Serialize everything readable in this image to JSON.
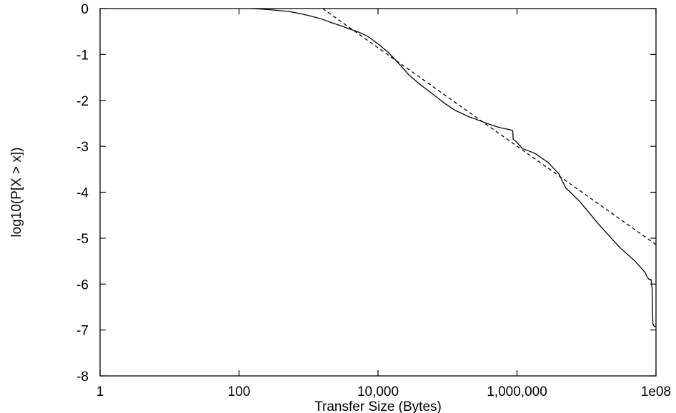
{
  "chart_data": {
    "type": "line",
    "title": "",
    "xlabel": "Transfer Size (Bytes)",
    "ylabel": "log10(P[X > x])",
    "x_scale": "log",
    "xlim": [
      1,
      100000000
    ],
    "ylim": [
      -8,
      0
    ],
    "x_ticks": [
      {
        "value": 1,
        "label": "1"
      },
      {
        "value": 100,
        "label": "100"
      },
      {
        "value": 10000,
        "label": "10,000"
      },
      {
        "value": 1000000,
        "label": "1,000,000"
      },
      {
        "value": 100000000,
        "label": "1e08"
      }
    ],
    "y_ticks": [
      {
        "value": 0,
        "label": "0"
      },
      {
        "value": -1,
        "label": "-1"
      },
      {
        "value": -2,
        "label": "-2"
      },
      {
        "value": -3,
        "label": "-3"
      },
      {
        "value": -4,
        "label": "-4"
      },
      {
        "value": -5,
        "label": "-5"
      },
      {
        "value": -6,
        "label": "-6"
      },
      {
        "value": -7,
        "label": "-7"
      },
      {
        "value": -8,
        "label": "-8"
      }
    ],
    "grid": false,
    "legend": "none",
    "series": [
      {
        "style": "solid",
        "color": "#000000",
        "x": [
          150,
          200,
          300,
          500,
          700,
          1000,
          1500,
          2000,
          3000,
          4000,
          5000,
          6000,
          7000,
          8000,
          10000,
          14000,
          20000,
          28000,
          40000,
          60000,
          90000,
          130000,
          200000,
          300000,
          400000,
          500000,
          600000,
          800000,
          870000,
          880000,
          950000,
          1200000,
          1800000,
          2800000,
          4000000,
          5000000,
          8000000,
          15000000,
          30000000,
          50000000,
          70000000,
          75000000,
          80000000,
          85000000,
          88000000,
          90000000,
          92000000,
          95000000,
          100000000
        ],
        "y": [
          0.0,
          -0.01,
          -0.03,
          -0.06,
          -0.1,
          -0.15,
          -0.22,
          -0.29,
          -0.38,
          -0.45,
          -0.5,
          -0.55,
          -0.6,
          -0.66,
          -0.77,
          -0.95,
          -1.2,
          -1.45,
          -1.65,
          -1.85,
          -2.06,
          -2.22,
          -2.35,
          -2.45,
          -2.52,
          -2.57,
          -2.6,
          -2.64,
          -2.66,
          -2.85,
          -2.88,
          -3.05,
          -3.15,
          -3.35,
          -3.6,
          -3.9,
          -4.2,
          -4.7,
          -5.2,
          -5.5,
          -5.75,
          -5.85,
          -5.9,
          -5.9,
          -6.1,
          -6.85,
          -6.9,
          -6.92,
          -6.93
        ]
      },
      {
        "style": "dashed",
        "color": "#000000",
        "x": [
          1600,
          100000000
        ],
        "y": [
          0.0,
          -5.14
        ]
      }
    ]
  }
}
